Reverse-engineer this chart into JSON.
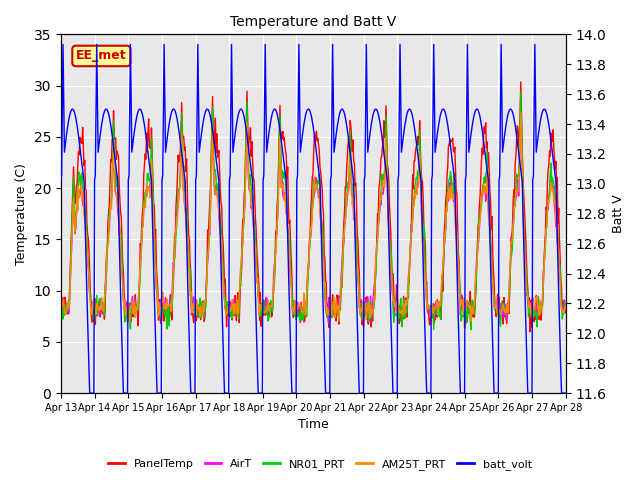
{
  "title": "Temperature and Batt V",
  "xlabel": "Time",
  "ylabel_left": "Temperature (C)",
  "ylabel_right": "Batt V",
  "ylim_left": [
    0,
    35
  ],
  "ylim_right": [
    11.6,
    14.0
  ],
  "yticks_left": [
    0,
    5,
    10,
    15,
    20,
    25,
    30,
    35
  ],
  "yticks_right": [
    11.6,
    11.8,
    12.0,
    12.2,
    12.4,
    12.6,
    12.8,
    13.0,
    13.2,
    13.4,
    13.6,
    13.8,
    14.0
  ],
  "xtick_labels": [
    "Apr 13",
    "Apr 14",
    "Apr 15",
    "Apr 16",
    "Apr 17",
    "Apr 18",
    "Apr 19",
    "Apr 20",
    "Apr 21",
    "Apr 22",
    "Apr 23",
    "Apr 24",
    "Apr 25",
    "Apr 26",
    "Apr 27",
    "Apr 28"
  ],
  "annotation_text": "EE_met",
  "annotation_color": "#cc0000",
  "annotation_bg": "#ffff99",
  "series_colors": {
    "PanelTemp": "#ff0000",
    "AirT": "#ff00ff",
    "NR01_PRT": "#00cc00",
    "AM25T_PRT": "#ff8800",
    "batt_volt": "#0000ff"
  },
  "legend_items": [
    "PanelTemp",
    "AirT",
    "NR01_PRT",
    "AM25T_PRT",
    "batt_volt"
  ],
  "background_color": "#ffffff",
  "plot_bg_color": "#e8e8e8",
  "grid_color": "#ffffff",
  "n_days": 15,
  "n_points_per_day": 48
}
